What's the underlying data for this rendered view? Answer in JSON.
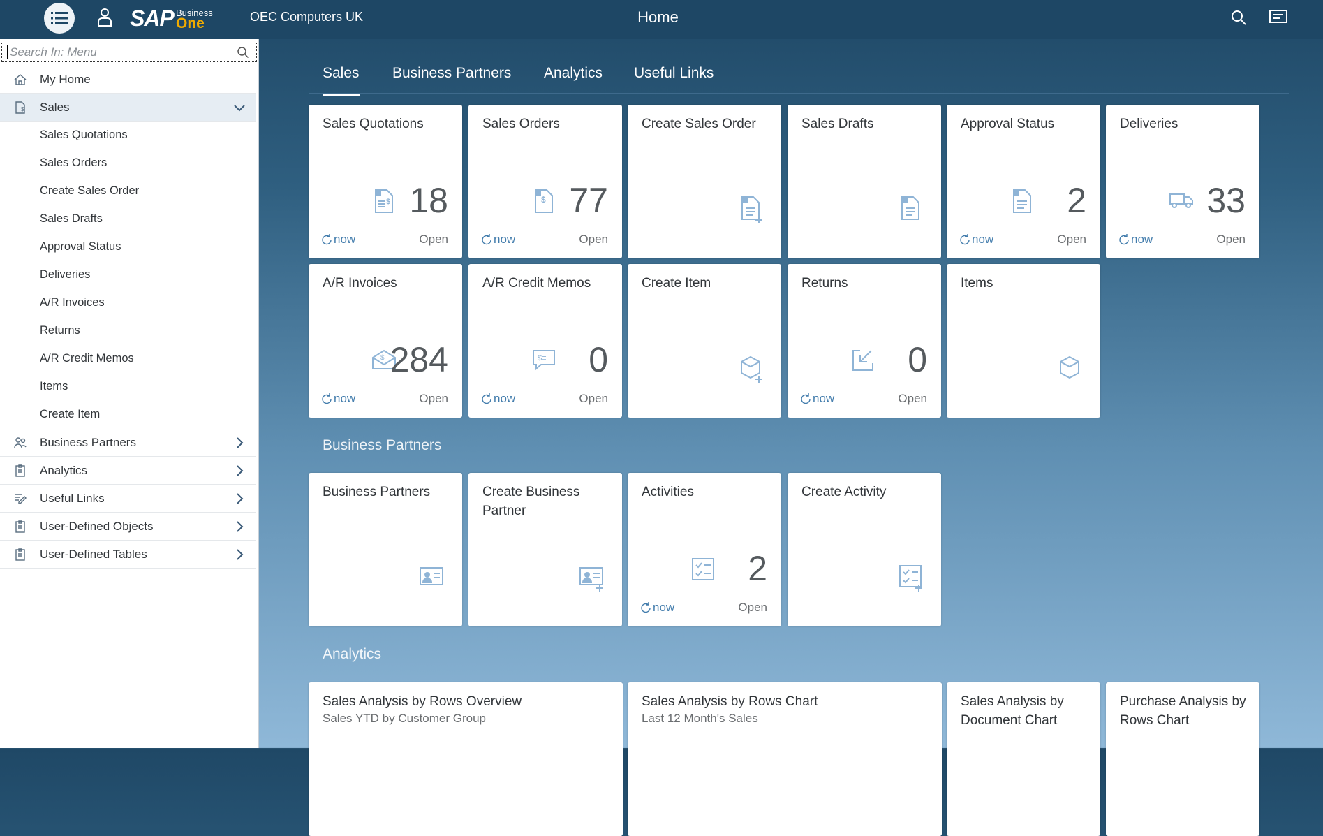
{
  "header": {
    "company": "OEC Computers UK",
    "title": "Home",
    "logo_sap": "SAP",
    "logo_business": "Business",
    "logo_one": "One"
  },
  "sidebar": {
    "search_placeholder": "Search In: Menu",
    "items": [
      {
        "label": "My Home",
        "icon": "home-icon"
      },
      {
        "label": "Sales",
        "icon": "sales-document-icon",
        "expanded": true
      },
      {
        "label": "Business Partners",
        "icon": "people-icon"
      },
      {
        "label": "Analytics",
        "icon": "clipboard-icon"
      },
      {
        "label": "Useful Links",
        "icon": "edit-icon"
      },
      {
        "label": "User-Defined Objects",
        "icon": "clipboard-icon"
      },
      {
        "label": "User-Defined Tables",
        "icon": "clipboard-icon"
      }
    ],
    "sales_sub": [
      "Sales Quotations",
      "Sales Orders",
      "Create Sales Order",
      "Sales Drafts",
      "Approval Status",
      "Deliveries",
      "A/R Invoices",
      "Returns",
      "A/R Credit Memos",
      "Items",
      "Create Item"
    ]
  },
  "tabs": [
    "Sales",
    "Business Partners",
    "Analytics",
    "Useful Links"
  ],
  "sections": {
    "bp": "Business Partners",
    "analytics": "Analytics"
  },
  "tile_common": {
    "refresh": "now",
    "status": "Open"
  },
  "sales_tiles": [
    {
      "title": "Sales Quotations",
      "count": "18",
      "icon": "quotation-icon"
    },
    {
      "title": "Sales Orders",
      "count": "77",
      "icon": "invoice-dollar-icon"
    },
    {
      "title": "Create Sales Order",
      "icon": "add-document-icon"
    },
    {
      "title": "Sales Drafts",
      "icon": "document-icon"
    },
    {
      "title": "Approval Status",
      "count": "2",
      "icon": "document-icon"
    },
    {
      "title": "Deliveries",
      "count": "33",
      "icon": "truck-icon"
    },
    {
      "title": "A/R Invoices",
      "count": "284",
      "icon": "envelope-dollar-icon"
    },
    {
      "title": "A/R Credit Memos",
      "count": "0",
      "icon": "message-dollar-icon"
    },
    {
      "title": "Create Item",
      "icon": "add-product-icon"
    },
    {
      "title": "Returns",
      "count": "0",
      "icon": "return-icon"
    },
    {
      "title": "Items",
      "icon": "product-icon"
    }
  ],
  "bp_tiles": [
    {
      "title": "Business Partners",
      "icon": "contact-card-icon"
    },
    {
      "title": "Create Business Partner",
      "icon": "add-contact-icon"
    },
    {
      "title": "Activities",
      "count": "2",
      "icon": "task-icon"
    },
    {
      "title": "Create Activity",
      "icon": "add-task-icon"
    }
  ],
  "analytics_tiles": [
    {
      "title": "Sales Analysis by Rows Overview",
      "subtitle": "Sales YTD by Customer Group",
      "wide": true
    },
    {
      "title": "Sales Analysis by Rows Chart",
      "subtitle": "Last 12 Month's Sales",
      "wide": true
    },
    {
      "title": "Sales Analysis by Document Chart"
    },
    {
      "title": "Purchase Analysis by Rows Chart"
    }
  ],
  "colors": {
    "header": "#1e4765",
    "accent": "#427cac",
    "icon": "#8fb4d6",
    "logo_one": "#f0ab00"
  }
}
